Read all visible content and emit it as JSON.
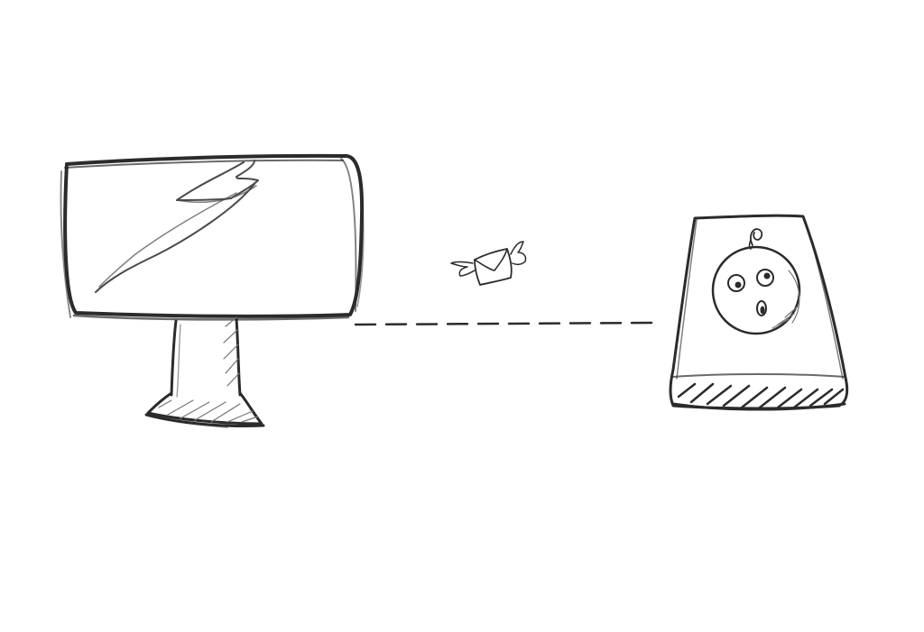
{
  "canvas": {
    "background": "#ffffff",
    "ink_color": "#2b2b2b",
    "shade_color": "#6e6e6e"
  },
  "elements": {
    "monitor": {
      "icon": "monitor-icon",
      "screen_symbol": "lightning-bolt-icon"
    },
    "connection": {
      "style": "dashed-line"
    },
    "message": {
      "icon": "flying-envelope-icon"
    },
    "device": {
      "icon": "wall-socket-device-icon",
      "face": "surprised-face-icon"
    }
  }
}
